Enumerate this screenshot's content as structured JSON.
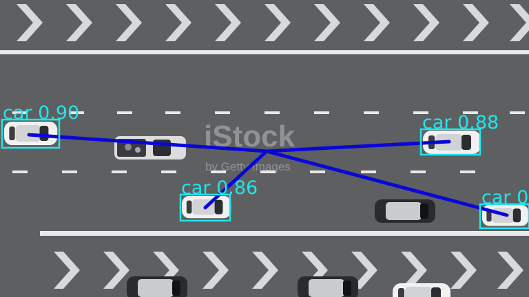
{
  "colors": {
    "road": "#5e5f61",
    "lane_marking": "#e9e9e9",
    "box": "#1fe6ee",
    "tracker_line": "#0a06d8"
  },
  "watermark": {
    "main": "iStock",
    "sub": "by Getty Images"
  },
  "detections": [
    {
      "label": "car 0.90"
    },
    {
      "label": "car 0.88"
    },
    {
      "label": "car 0.86"
    },
    {
      "label": "car 0"
    }
  ]
}
